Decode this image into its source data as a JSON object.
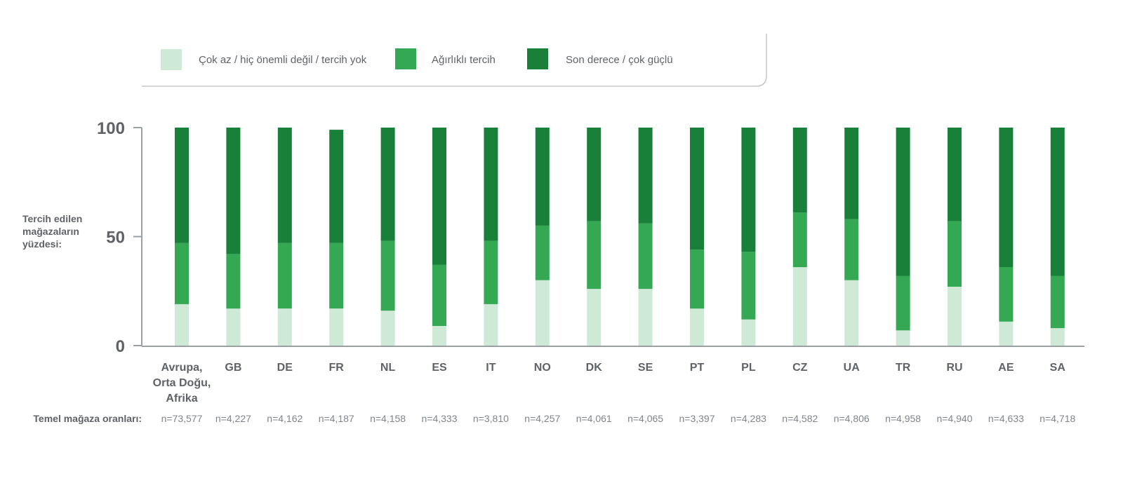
{
  "legend": [
    {
      "label": "Çok az / hiç önemli değil / tercih yok",
      "color": "#cfe9d7"
    },
    {
      "label": "Ağırlıklı tercih",
      "color": "#34a853"
    },
    {
      "label": "Son derece / çok güçlü",
      "color": "#188038"
    }
  ],
  "ylabel_lines": [
    "Tercih edilen",
    "mağazaların",
    "yüzdesi:"
  ],
  "n_row_label": "Temel mağaza oranları:",
  "chart_data": {
    "type": "bar",
    "stacked": true,
    "categories": [
      [
        "Avrupa,",
        "Orta Doğu,",
        "Afrika"
      ],
      [
        "GB"
      ],
      [
        "DE"
      ],
      [
        "FR"
      ],
      [
        "NL"
      ],
      [
        "ES"
      ],
      [
        "IT"
      ],
      [
        "NO"
      ],
      [
        "DK"
      ],
      [
        "SE"
      ],
      [
        "PT"
      ],
      [
        "PL"
      ],
      [
        "CZ"
      ],
      [
        "UA"
      ],
      [
        "TR"
      ],
      [
        "RU"
      ],
      [
        "AE"
      ],
      [
        "SA"
      ]
    ],
    "n_labels": [
      "n=73,577",
      "n=4,227",
      "n=4,162",
      "n=4,187",
      "n=4,158",
      "n=4,333",
      "n=3,810",
      "n=4,257",
      "n=4,061",
      "n=4,065",
      "n=3,397",
      "n=4,283",
      "n=4,582",
      "n=4,806",
      "n=4,958",
      "n=4,940",
      "n=4,633",
      "n=4,718"
    ],
    "series": [
      {
        "name": "Çok az / hiç önemli değil / tercih yok",
        "values": [
          19,
          17,
          17,
          17,
          16,
          9,
          19,
          30,
          26,
          26,
          17,
          12,
          36,
          30,
          7,
          27,
          11,
          8
        ]
      },
      {
        "name": "Ağırlıklı tercih",
        "values": [
          28,
          25,
          30,
          30,
          32,
          28,
          29,
          25,
          31,
          30,
          27,
          31,
          25,
          28,
          25,
          30,
          25,
          24
        ]
      },
      {
        "name": "Son derece / çok güçlü",
        "values": [
          53,
          58,
          53,
          52,
          52,
          63,
          52,
          45,
          43,
          44,
          56,
          57,
          39,
          42,
          68,
          43,
          64,
          68
        ]
      }
    ],
    "ylim": [
      0,
      100
    ],
    "yticks": [
      0,
      50,
      100
    ],
    "ytick_labels": [
      "0",
      "50",
      "100"
    ]
  }
}
